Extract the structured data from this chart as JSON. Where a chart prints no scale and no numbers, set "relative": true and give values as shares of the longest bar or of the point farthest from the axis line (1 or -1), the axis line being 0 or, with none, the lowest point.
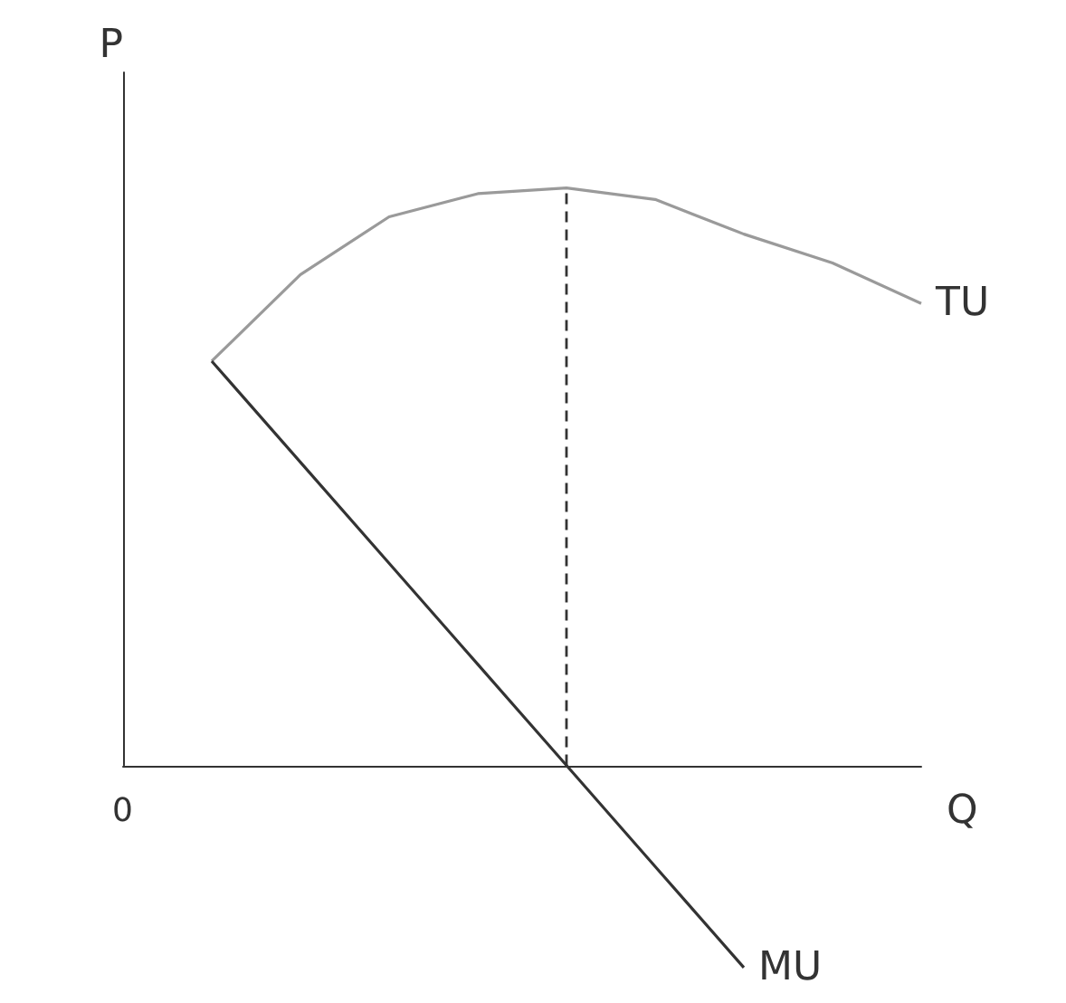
{
  "chart_data": {
    "type": "line",
    "relative": true,
    "xlabel": "Q",
    "ylabel": "P",
    "categories": [
      null,
      null,
      null,
      null,
      null,
      null,
      null,
      null,
      null,
      null
    ],
    "annotations": [
      "0"
    ],
    "series": [
      {
        "name": "TU",
        "color": "#9a9a9a",
        "values": [
          null,
          0.7,
          0.85,
          0.95,
          0.99,
          1,
          0.98,
          0.92,
          0.87,
          0.8
        ]
      },
      {
        "name": "MU",
        "color": "#333333",
        "values": [
          null,
          0.7,
          0.525,
          0.35,
          0.175,
          0,
          -0.175,
          -0.35,
          null,
          null
        ]
      }
    ],
    "marker": "none",
    "grid": false,
    "legend": false
  }
}
